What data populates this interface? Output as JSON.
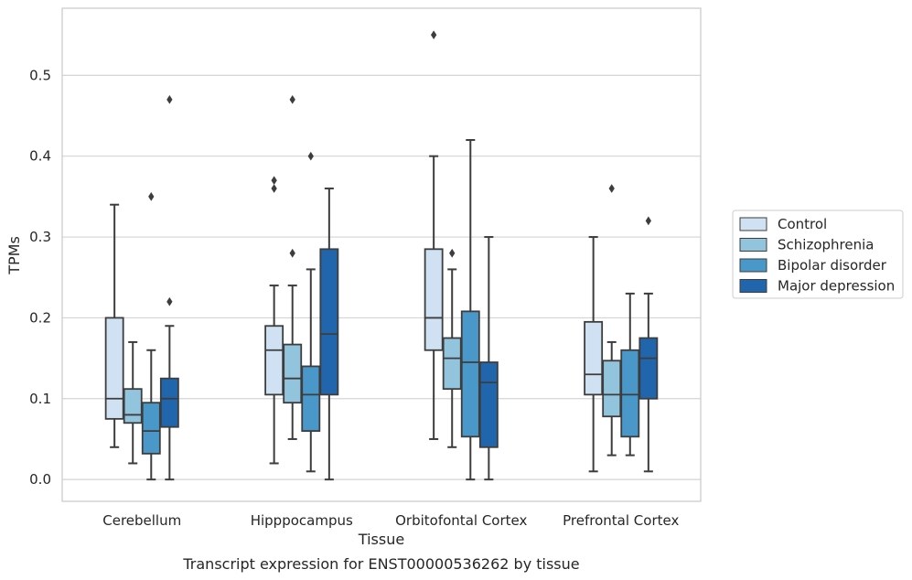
{
  "chart_data": {
    "type": "boxplot",
    "caption": "Transcript expression for ENST00000536262 by tissue",
    "xlabel": "Tissue",
    "ylabel": "TPMs",
    "ylim": [
      -0.027,
      0.583
    ],
    "yticks": [
      0.0,
      0.1,
      0.2,
      0.3,
      0.4,
      0.5
    ],
    "ytick_labels": [
      "0.0",
      "0.1",
      "0.2",
      "0.3",
      "0.4",
      "0.5"
    ],
    "grid": true,
    "legend_position": "right",
    "categories": [
      "Cerebellum",
      "Hipppocampus",
      "Orbitofontal Cortex",
      "Prefrontal Cortex"
    ],
    "series": [
      {
        "name": "Control",
        "color": "#cfe1f2",
        "boxes": [
          {
            "whislo": 0.04,
            "q1": 0.075,
            "med": 0.1,
            "q3": 0.2,
            "whishi": 0.34,
            "fliers": []
          },
          {
            "whislo": 0.02,
            "q1": 0.105,
            "med": 0.16,
            "q3": 0.19,
            "whishi": 0.24,
            "fliers": [
              0.36,
              0.37
            ]
          },
          {
            "whislo": 0.05,
            "q1": 0.16,
            "med": 0.2,
            "q3": 0.285,
            "whishi": 0.4,
            "fliers": [
              0.55
            ]
          },
          {
            "whislo": 0.01,
            "q1": 0.105,
            "med": 0.13,
            "q3": 0.195,
            "whishi": 0.3,
            "fliers": []
          }
        ]
      },
      {
        "name": "Schizophrenia",
        "color": "#93c4de",
        "boxes": [
          {
            "whislo": 0.02,
            "q1": 0.07,
            "med": 0.08,
            "q3": 0.112,
            "whishi": 0.17,
            "fliers": []
          },
          {
            "whislo": 0.05,
            "q1": 0.095,
            "med": 0.125,
            "q3": 0.167,
            "whishi": 0.24,
            "fliers": [
              0.28,
              0.47
            ]
          },
          {
            "whislo": 0.04,
            "q1": 0.112,
            "med": 0.15,
            "q3": 0.175,
            "whishi": 0.26,
            "fliers": [
              0.28
            ]
          },
          {
            "whislo": 0.03,
            "q1": 0.078,
            "med": 0.105,
            "q3": 0.147,
            "whishi": 0.17,
            "fliers": [
              0.36
            ]
          }
        ]
      },
      {
        "name": "Bipolar disorder",
        "color": "#4a98c9",
        "boxes": [
          {
            "whislo": 0.0,
            "q1": 0.032,
            "med": 0.06,
            "q3": 0.095,
            "whishi": 0.16,
            "fliers": [
              0.35
            ]
          },
          {
            "whislo": 0.01,
            "q1": 0.06,
            "med": 0.105,
            "q3": 0.14,
            "whishi": 0.26,
            "fliers": [
              0.4
            ]
          },
          {
            "whislo": 0.0,
            "q1": 0.053,
            "med": 0.145,
            "q3": 0.208,
            "whishi": 0.42,
            "fliers": []
          },
          {
            "whislo": 0.03,
            "q1": 0.053,
            "med": 0.105,
            "q3": 0.16,
            "whishi": 0.23,
            "fliers": []
          }
        ]
      },
      {
        "name": "Major depression",
        "color": "#2166ac",
        "boxes": [
          {
            "whislo": 0.0,
            "q1": 0.065,
            "med": 0.1,
            "q3": 0.125,
            "whishi": 0.19,
            "fliers": [
              0.22,
              0.47
            ]
          },
          {
            "whislo": 0.0,
            "q1": 0.105,
            "med": 0.18,
            "q3": 0.285,
            "whishi": 0.36,
            "fliers": []
          },
          {
            "whislo": 0.0,
            "q1": 0.04,
            "med": 0.12,
            "q3": 0.145,
            "whishi": 0.3,
            "fliers": []
          },
          {
            "whislo": 0.01,
            "q1": 0.1,
            "med": 0.15,
            "q3": 0.175,
            "whishi": 0.23,
            "fliers": [
              0.32
            ]
          }
        ]
      }
    ]
  }
}
